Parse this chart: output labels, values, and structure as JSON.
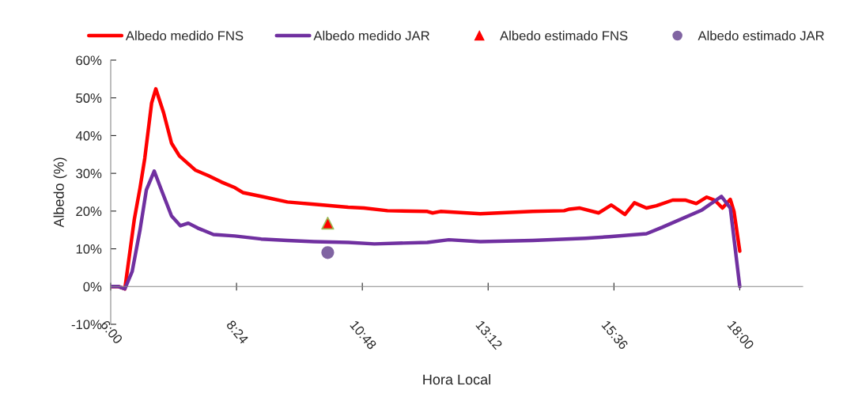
{
  "chart_data": {
    "type": "line",
    "xlabel": "Hora Local",
    "ylabel": "Albedo (%)",
    "legend": "top",
    "grid": false,
    "xlim": [
      6,
      19.2
    ],
    "xticks": [
      {
        "value": 6,
        "label": "6:00"
      },
      {
        "value": 8.4,
        "label": "8:24"
      },
      {
        "value": 10.8,
        "label": "10:48"
      },
      {
        "value": 13.2,
        "label": "13:12"
      },
      {
        "value": 15.6,
        "label": "15:36"
      },
      {
        "value": 18,
        "label": "18:00"
      }
    ],
    "ylim": [
      -10,
      60
    ],
    "yticks": [
      {
        "value": -10,
        "label": "-10%"
      },
      {
        "value": 0,
        "label": "0%"
      },
      {
        "value": 10,
        "label": "10%"
      },
      {
        "value": 20,
        "label": "20%"
      },
      {
        "value": 30,
        "label": "30%"
      },
      {
        "value": 40,
        "label": "40%"
      },
      {
        "value": 50,
        "label": "50%"
      },
      {
        "value": 60,
        "label": "60%"
      }
    ],
    "series": [
      {
        "name": "Albedo medido FNS",
        "color": "#ff0000",
        "marker": "none",
        "x": [
          6.0,
          6.15,
          6.27,
          6.45,
          6.56,
          6.65,
          6.78,
          6.86,
          7.01,
          7.16,
          7.31,
          7.62,
          7.86,
          8.11,
          8.37,
          8.52,
          8.87,
          9.37,
          9.88,
          10.53,
          10.83,
          11.28,
          12.04,
          12.14,
          12.29,
          13.05,
          14.05,
          14.65,
          14.75,
          14.95,
          15.31,
          15.55,
          15.81,
          15.99,
          16.22,
          16.41,
          16.72,
          16.97,
          17.17,
          17.37,
          17.52,
          17.67,
          17.82,
          17.89,
          18.0
        ],
        "values": [
          0,
          0,
          -0.6,
          17.8,
          26.2,
          34,
          48.6,
          52.4,
          46,
          38,
          34.6,
          30.8,
          29.4,
          27.7,
          26.2,
          24.9,
          23.9,
          22.4,
          21.8,
          21.0,
          20.8,
          20.1,
          19.9,
          19.5,
          19.9,
          19.3,
          19.9,
          20.1,
          20.5,
          20.8,
          19.5,
          21.6,
          19.1,
          22.2,
          20.8,
          21.4,
          22.9,
          22.9,
          22.0,
          23.7,
          22.9,
          20.8,
          23.1,
          19.9,
          9.4
        ]
      },
      {
        "name": "Albedo medido JAR",
        "color": "#7030a0",
        "marker": "none",
        "x": [
          6.0,
          6.15,
          6.27,
          6.41,
          6.56,
          6.68,
          6.83,
          6.95,
          7.16,
          7.33,
          7.48,
          7.66,
          7.96,
          8.37,
          8.87,
          9.37,
          9.88,
          10.53,
          11.03,
          12.04,
          12.45,
          13.05,
          14.05,
          15.06,
          15.51,
          16.22,
          16.52,
          17.28,
          17.65,
          17.82,
          18.0
        ],
        "values": [
          0,
          0,
          -0.6,
          4.0,
          15.1,
          25.6,
          30.6,
          26.2,
          18.7,
          16.1,
          16.8,
          15.5,
          13.8,
          13.4,
          12.6,
          12.2,
          11.9,
          11.7,
          11.3,
          11.7,
          12.4,
          11.9,
          12.2,
          12.8,
          13.2,
          14.0,
          15.7,
          20.3,
          23.9,
          20.8,
          0
        ]
      },
      {
        "name": "Albedo estimado FNS",
        "type": "scatter",
        "color": "#ff0000",
        "marker": "triangle",
        "x": [
          10.14
        ],
        "values": [
          16.8
        ]
      },
      {
        "name": "Albedo estimado JAR",
        "type": "scatter",
        "color": "#8064a2",
        "marker": "circle",
        "x": [
          10.14
        ],
        "values": [
          9.0
        ]
      }
    ]
  }
}
